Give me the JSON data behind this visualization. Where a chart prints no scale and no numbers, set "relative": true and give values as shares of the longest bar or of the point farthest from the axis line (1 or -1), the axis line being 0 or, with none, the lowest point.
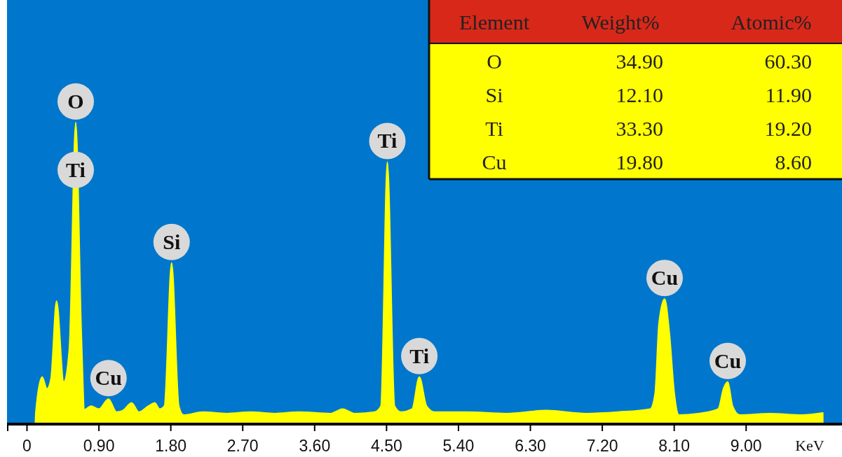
{
  "chart_data": [
    {
      "type": "area",
      "relative": true,
      "xlabel": "KeV",
      "xlim": [
        -0.25,
        10.2
      ],
      "xticks": [
        0,
        {
          "value": 0.9,
          "label": "0.90"
        },
        {
          "value": 1.8,
          "label": "1.80"
        },
        {
          "value": 2.7,
          "label": "2.70"
        },
        {
          "value": 3.6,
          "label": "3.60"
        },
        {
          "value": 4.5,
          "label": "4.50"
        },
        {
          "value": 5.4,
          "label": "5.40"
        },
        {
          "value": 6.3,
          "label": "6.30"
        },
        {
          "value": 7.2,
          "label": "7.20"
        },
        {
          "value": 8.1,
          "label": "8.10"
        },
        {
          "value": 9.0,
          "label": "9.00"
        }
      ],
      "x": [
        0.105,
        0.11,
        0.19,
        0.25,
        0.3,
        0.37,
        0.46,
        0.53,
        0.61,
        0.68,
        0.72,
        0.8,
        0.9,
        1.02,
        1.12,
        1.2,
        1.31,
        1.4,
        1.52,
        1.6,
        1.66,
        1.72,
        1.81,
        1.9,
        1.96,
        2.2,
        2.5,
        2.8,
        3.1,
        3.4,
        3.8,
        3.95,
        4.1,
        4.35,
        4.43,
        4.51,
        4.6,
        4.68,
        4.82,
        4.91,
        5.0,
        5.1,
        5.5,
        6.0,
        6.5,
        7.0,
        7.4,
        7.8,
        7.86,
        7.91,
        7.98,
        8.04,
        8.1,
        8.16,
        8.4,
        8.65,
        8.72,
        8.77,
        8.83,
        8.92,
        9.3,
        9.7,
        9.96
      ],
      "series": [
        {
          "color": "#ffff00",
          "values": [
            0,
            0.037,
            0.156,
            0.117,
            0.15,
            0.408,
            0.14,
            0.25,
            1.0,
            0.3,
            0.048,
            0.06,
            0.05,
            0.083,
            0.04,
            0.045,
            0.07,
            0.04,
            0.06,
            0.07,
            0.05,
            0.06,
            0.534,
            0.06,
            0.03,
            0.04,
            0.035,
            0.04,
            0.035,
            0.04,
            0.035,
            0.05,
            0.035,
            0.04,
            0.06,
            0.869,
            0.06,
            0.04,
            0.05,
            0.156,
            0.06,
            0.04,
            0.04,
            0.035,
            0.045,
            0.035,
            0.04,
            0.05,
            0.1,
            0.335,
            0.415,
            0.3,
            0.105,
            0.03,
            0.035,
            0.05,
            0.12,
            0.14,
            0.06,
            0.03,
            0.035,
            0.03,
            0.037
          ]
        }
      ],
      "annotations": [
        {
          "text": "O",
          "x": 0.61,
          "y": 1.0
        },
        {
          "text": "Ti",
          "x": 0.61,
          "y": 0.773
        },
        {
          "text": "Cu",
          "x": 1.02,
          "y": 0.083
        },
        {
          "text": "Si",
          "x": 1.81,
          "y": 0.534
        },
        {
          "text": "Ti",
          "x": 4.51,
          "y": 0.869
        },
        {
          "text": "Ti",
          "x": 4.91,
          "y": 0.156
        },
        {
          "text": "Cu",
          "x": 7.98,
          "y": 0.415
        },
        {
          "text": "Cu",
          "x": 8.77,
          "y": 0.14
        }
      ]
    },
    {
      "type": "other",
      "categories": [
        "Element",
        "Weight%",
        "Atomic%"
      ],
      "y_categories": [
        "O",
        "Si",
        "Ti",
        "Cu"
      ],
      "cell_labels": [
        [
          "34.90",
          "60.30"
        ],
        [
          "12.10",
          "11.90"
        ],
        [
          "33.30",
          "19.20"
        ],
        [
          "19.80",
          "8.60"
        ]
      ]
    }
  ]
}
